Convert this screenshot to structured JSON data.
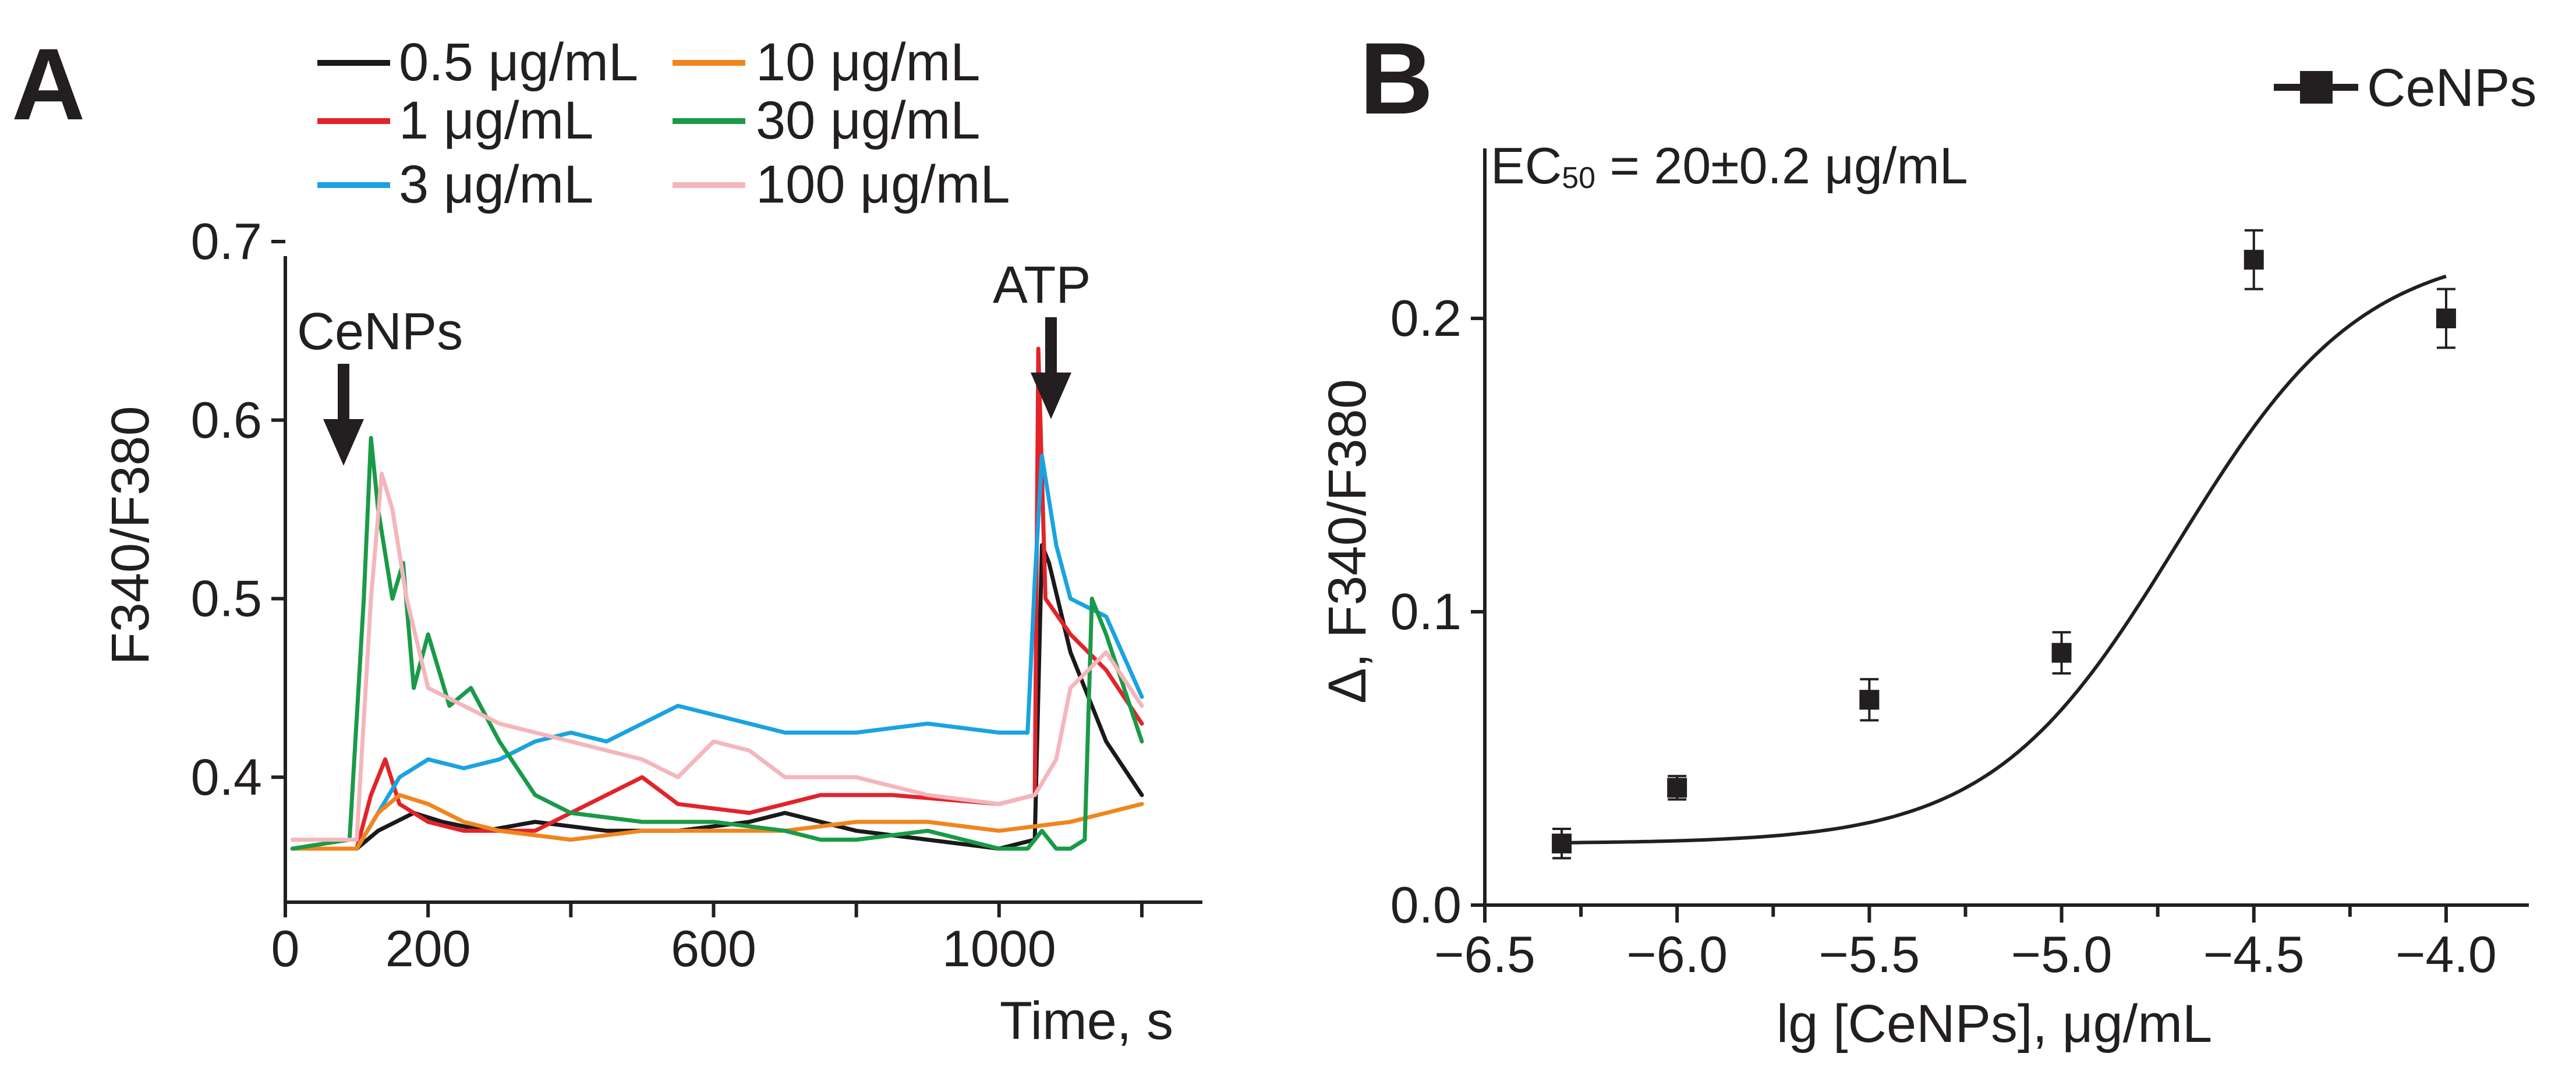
{
  "panel_a": {
    "letter": "A",
    "legend": [
      {
        "label": "0.5 μg/mL",
        "color": "#1a1a1a"
      },
      {
        "label": "1 μg/mL",
        "color": "#e2232a"
      },
      {
        "label": "3 μg/mL",
        "color": "#1aa3e0"
      },
      {
        "label": "10 μg/mL",
        "color": "#f0851e"
      },
      {
        "label": "30 μg/mL",
        "color": "#1a9a48"
      },
      {
        "label": "100 μg/mL",
        "color": "#f4b6bb"
      }
    ],
    "annotation_cenps": "CeNPs",
    "annotation_atp": "ATP"
  },
  "panel_b": {
    "letter": "B",
    "legend_label": "CeNPs",
    "ec50_prefix": "EC",
    "ec50_sub": "50",
    "ec50_value": " = 20±0.2 μg/mL"
  },
  "chart_data": [
    {
      "type": "line",
      "title": "",
      "xlabel": "Time, s",
      "ylabel": "F340/F380",
      "xlim": [
        0,
        1240
      ],
      "ylim": [
        0.33,
        0.7
      ],
      "xticks": [
        0,
        200,
        600,
        1000
      ],
      "xtick_labels": [
        "0",
        "200",
        "600",
        "1000"
      ],
      "xminor": [
        400,
        800,
        1200
      ],
      "yticks": [
        0.4,
        0.5,
        0.6,
        0.7
      ],
      "ytick_labels": [
        "0.4",
        "0.5",
        "0.6",
        "0.7"
      ],
      "annotations": [
        {
          "text": "CeNPs",
          "x": 90,
          "arrow_to": 0.615
        },
        {
          "text": "ATP",
          "x": 1045,
          "arrow_to": 0.625
        }
      ],
      "series": [
        {
          "name": "0.5 μg/mL",
          "color": "#1a1a1a",
          "x": [
            10,
            100,
            130,
            180,
            220,
            280,
            350,
            450,
            550,
            650,
            700,
            800,
            900,
            1000,
            1050,
            1060,
            1070,
            1100,
            1150,
            1200
          ],
          "values": [
            0.36,
            0.36,
            0.37,
            0.38,
            0.375,
            0.37,
            0.375,
            0.37,
            0.37,
            0.375,
            0.38,
            0.37,
            0.365,
            0.36,
            0.365,
            0.53,
            0.52,
            0.47,
            0.42,
            0.39
          ]
        },
        {
          "name": "1 μg/mL",
          "color": "#e2232a",
          "x": [
            10,
            100,
            120,
            140,
            160,
            200,
            250,
            350,
            450,
            500,
            550,
            650,
            750,
            850,
            1000,
            1050,
            1055,
            1065,
            1100,
            1150,
            1200
          ],
          "values": [
            0.36,
            0.36,
            0.39,
            0.41,
            0.385,
            0.375,
            0.37,
            0.37,
            0.39,
            0.4,
            0.385,
            0.38,
            0.39,
            0.39,
            0.385,
            0.39,
            0.64,
            0.5,
            0.48,
            0.46,
            0.43
          ]
        },
        {
          "name": "3 μg/mL",
          "color": "#1aa3e0",
          "x": [
            10,
            100,
            130,
            160,
            200,
            250,
            300,
            350,
            400,
            450,
            500,
            550,
            600,
            650,
            700,
            800,
            900,
            1000,
            1040,
            1050,
            1060,
            1080,
            1100,
            1150,
            1200
          ],
          "values": [
            0.36,
            0.36,
            0.38,
            0.4,
            0.41,
            0.405,
            0.41,
            0.42,
            0.425,
            0.42,
            0.43,
            0.44,
            0.435,
            0.43,
            0.425,
            0.425,
            0.43,
            0.425,
            0.425,
            0.51,
            0.58,
            0.53,
            0.5,
            0.49,
            0.445
          ]
        },
        {
          "name": "10 μg/mL",
          "color": "#f0851e",
          "x": [
            10,
            100,
            130,
            160,
            200,
            250,
            300,
            400,
            500,
            600,
            700,
            800,
            900,
            1000,
            1100,
            1200
          ],
          "values": [
            0.36,
            0.36,
            0.38,
            0.39,
            0.385,
            0.375,
            0.37,
            0.365,
            0.37,
            0.37,
            0.37,
            0.375,
            0.375,
            0.37,
            0.375,
            0.385
          ]
        },
        {
          "name": "30 μg/mL",
          "color": "#1a9a48",
          "x": [
            10,
            90,
            110,
            120,
            130,
            150,
            165,
            180,
            200,
            230,
            260,
            300,
            350,
            400,
            500,
            600,
            700,
            750,
            800,
            900,
            1000,
            1040,
            1060,
            1080,
            1100,
            1120,
            1130,
            1150,
            1200
          ],
          "values": [
            0.36,
            0.365,
            0.5,
            0.59,
            0.55,
            0.5,
            0.52,
            0.45,
            0.48,
            0.44,
            0.45,
            0.42,
            0.39,
            0.38,
            0.375,
            0.375,
            0.37,
            0.365,
            0.365,
            0.37,
            0.36,
            0.36,
            0.37,
            0.36,
            0.36,
            0.365,
            0.5,
            0.48,
            0.42
          ]
        },
        {
          "name": "100 μg/mL",
          "color": "#f4b6bb",
          "x": [
            10,
            100,
            120,
            135,
            150,
            170,
            200,
            250,
            300,
            400,
            500,
            550,
            600,
            650,
            700,
            800,
            900,
            1000,
            1050,
            1080,
            1100,
            1150,
            1200
          ],
          "values": [
            0.365,
            0.365,
            0.5,
            0.57,
            0.55,
            0.5,
            0.45,
            0.44,
            0.43,
            0.42,
            0.41,
            0.4,
            0.42,
            0.415,
            0.4,
            0.4,
            0.39,
            0.385,
            0.39,
            0.41,
            0.45,
            0.47,
            0.44
          ]
        }
      ]
    },
    {
      "type": "scatter",
      "title": "",
      "xlabel": "lg [CeNPs], μg/mL",
      "ylabel": "Δ, F340/F380",
      "xlim": [
        -6.5,
        -3.85
      ],
      "ylim": [
        0,
        0.25
      ],
      "xticks": [
        -6.5,
        -6.0,
        -5.5,
        -5.0,
        -4.5,
        -4.0
      ],
      "xtick_labels": [
        "−6.5",
        "−6.0",
        "−5.5",
        "−5.0",
        "−4.5",
        "−4.0"
      ],
      "yticks": [
        0.0,
        0.1,
        0.2
      ],
      "ytick_labels": [
        "0.0",
        "0.1",
        "0.2"
      ],
      "legend_position": "top-right",
      "series": [
        {
          "name": "CeNPs",
          "x": [
            -6.3,
            -6.0,
            -5.5,
            -5.0,
            -4.5,
            -4.0
          ],
          "values": [
            0.021,
            0.04,
            0.07,
            0.086,
            0.22,
            0.2
          ],
          "errors": [
            0.005,
            0.004,
            0.007,
            0.007,
            0.01,
            0.01
          ]
        }
      ],
      "fit": {
        "type": "logistic",
        "bottom": 0.021,
        "top": 0.225,
        "log_ec50": -4.7,
        "hill_slope": 1.8,
        "x_range": [
          -6.3,
          -4.0
        ]
      }
    }
  ]
}
